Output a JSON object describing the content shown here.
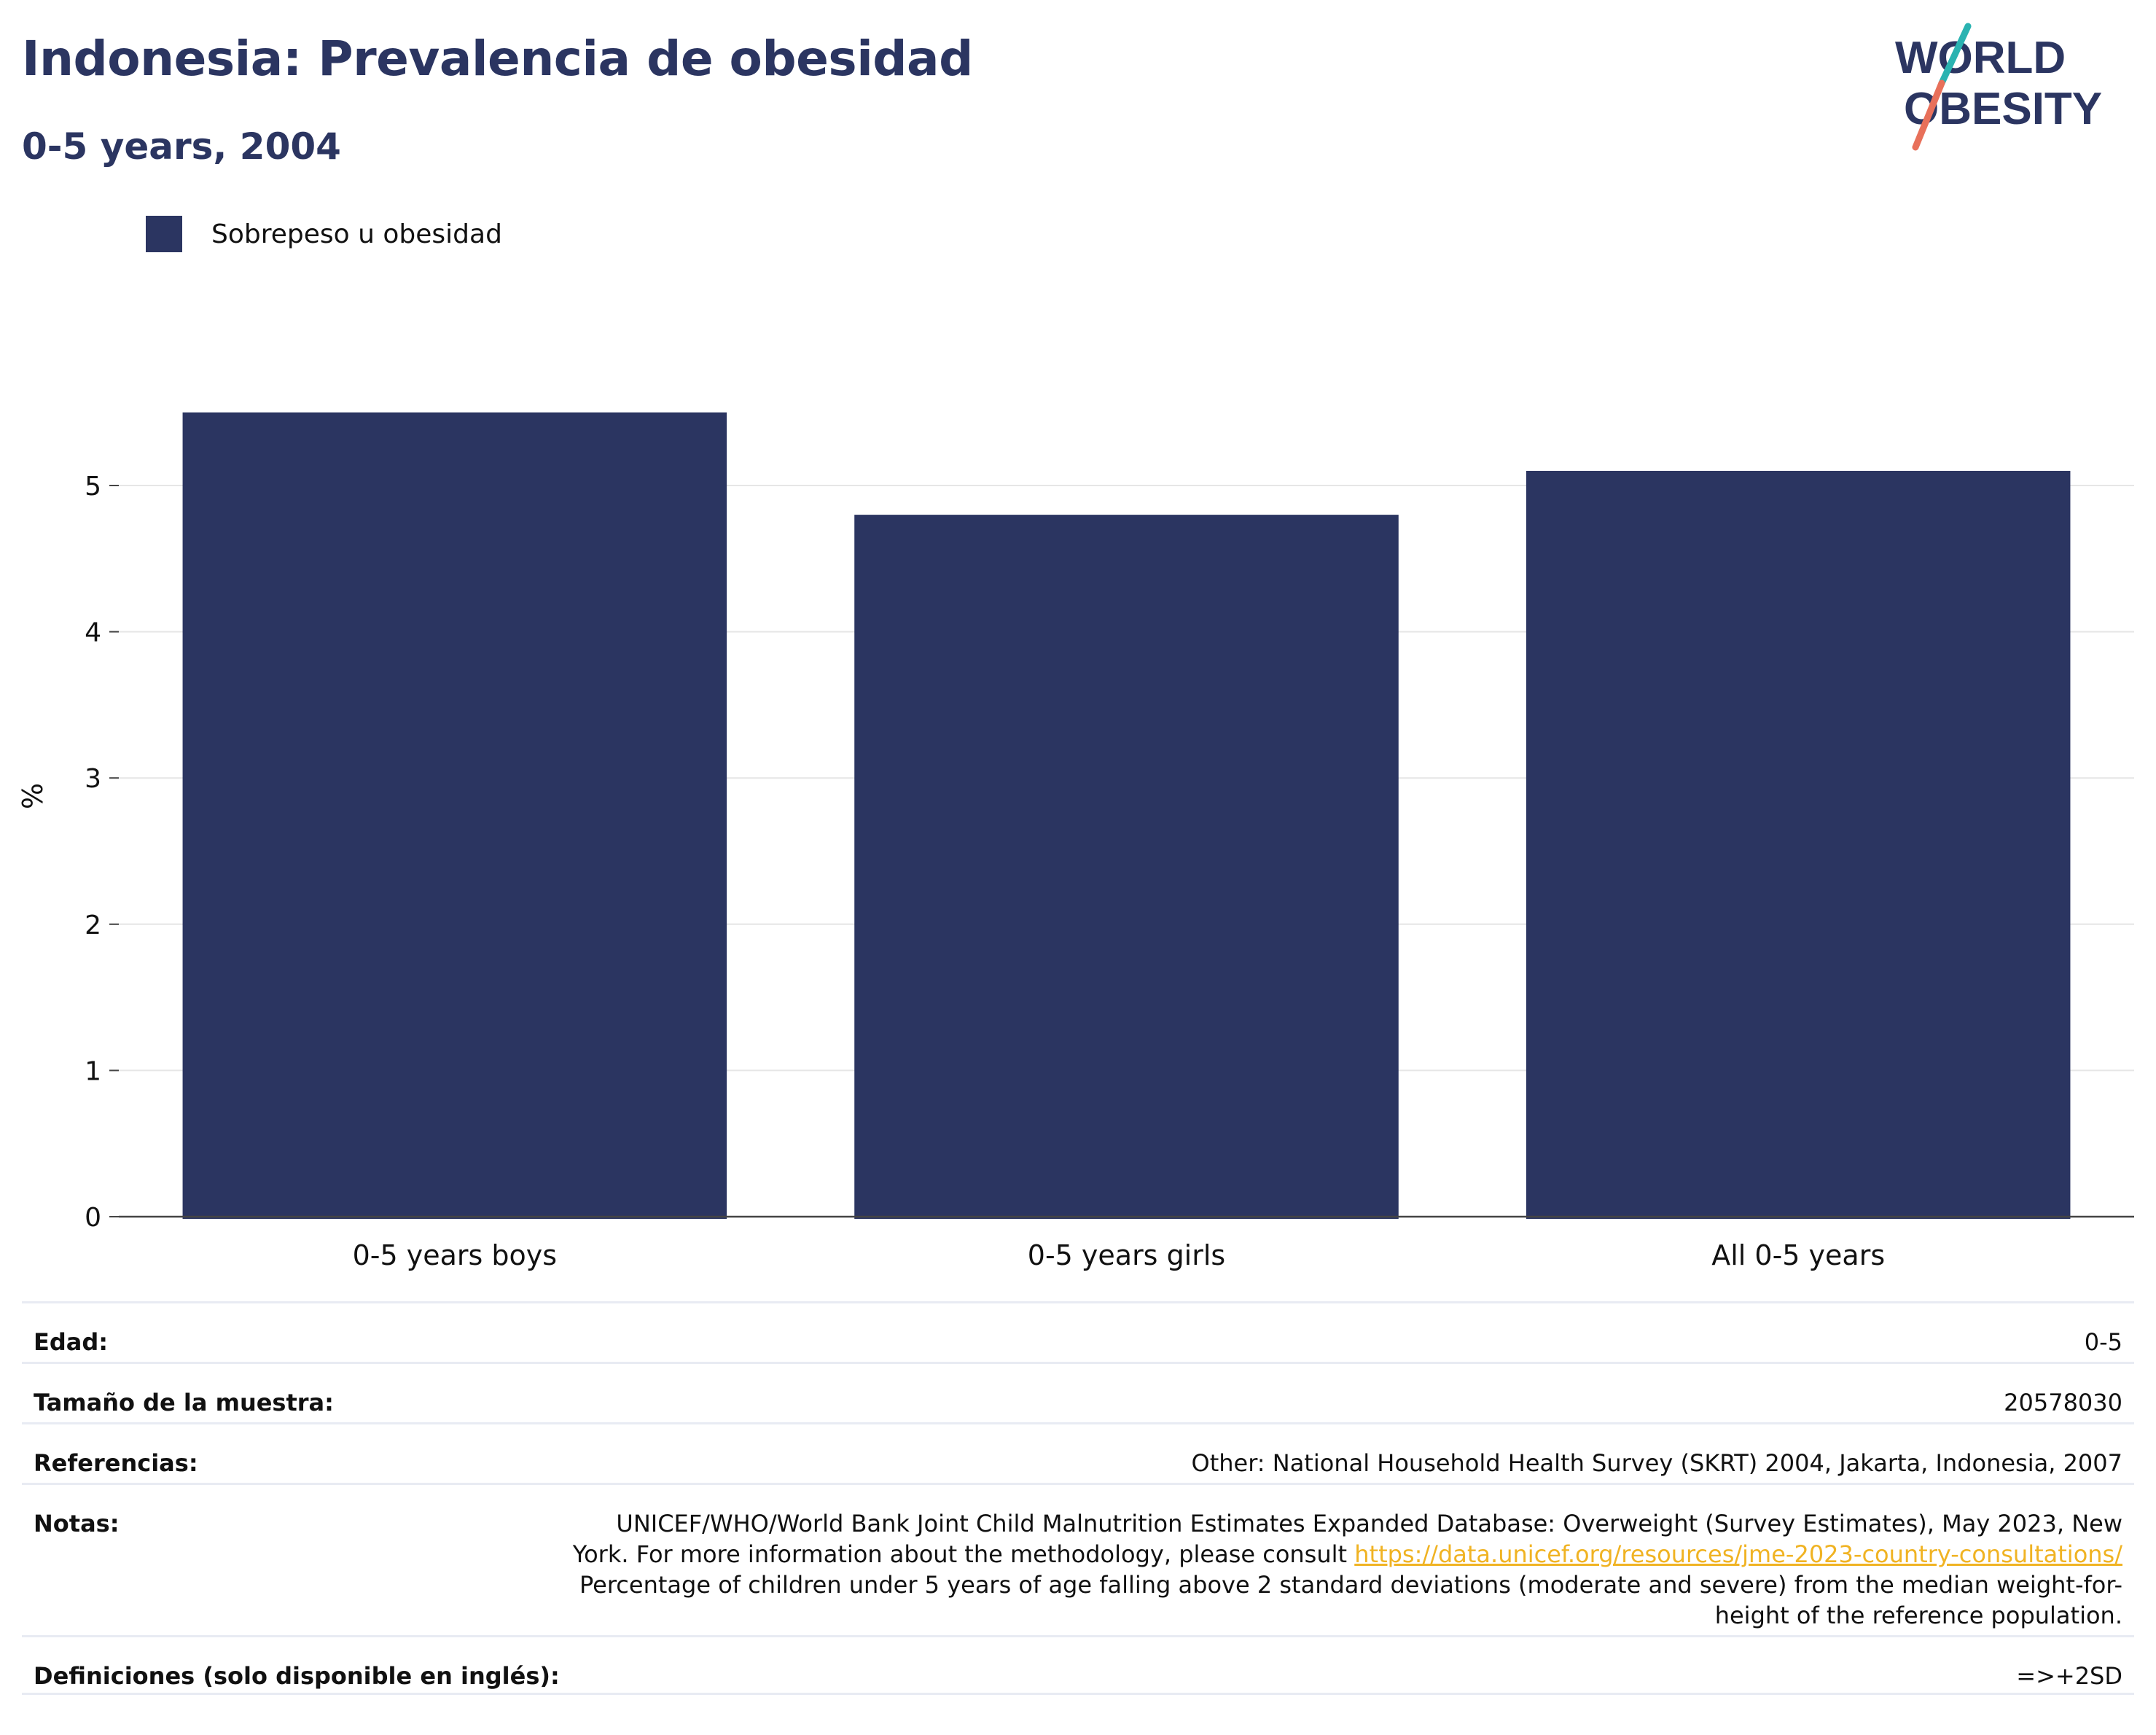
{
  "header": {
    "title": "Indonesia: Prevalencia de obesidad",
    "subtitle": "0-5 years, 2004"
  },
  "logo": {
    "line1": "WORLD",
    "line2": "OBESITY",
    "colors": {
      "text": "#2b3561",
      "slash_top": "#2ab3b1",
      "slash_bottom": "#e8705a"
    }
  },
  "legend": {
    "label": "Sobrepeso u obesidad",
    "color": "#2b3561"
  },
  "chart_data": {
    "type": "bar",
    "categories": [
      "0-5 years boys",
      "0-5 years girls",
      "All 0-5 years"
    ],
    "series": [
      {
        "name": "Sobrepeso u obesidad",
        "values": [
          5.5,
          4.8,
          5.1
        ],
        "color": "#2b3561"
      }
    ],
    "ylabel": "%",
    "ylim": [
      0,
      5.5
    ],
    "yticks": [
      0,
      1,
      2,
      3,
      4,
      5
    ],
    "grid": true
  },
  "info": {
    "edad": {
      "label": "Edad:",
      "value": "0-5"
    },
    "muestra": {
      "label": "Tamaño de la muestra:",
      "value": "20578030"
    },
    "referencias": {
      "label": "Referencias:",
      "value": "Other: National Household Health Survey (SKRT) 2004, Jakarta, Indonesia, 2007"
    },
    "notas": {
      "label": "Notas:",
      "line1": "UNICEF/WHO/World Bank Joint Child Malnutrition Estimates Expanded Database: Overweight (Survey Estimates), May 2023, New",
      "line2_prefix": "York. For more information about the methodology, please consult ",
      "link": "https://data.unicef.org/resources/jme-2023-country-consultations/",
      "line3": "Percentage of children under 5 years of age falling above 2 standard deviations (moderate and severe) from the median weight-for-",
      "line4": "height of the reference population."
    },
    "definiciones": {
      "label": "Definiciones (solo disponible en inglés):",
      "value": "=>+2SD"
    }
  }
}
